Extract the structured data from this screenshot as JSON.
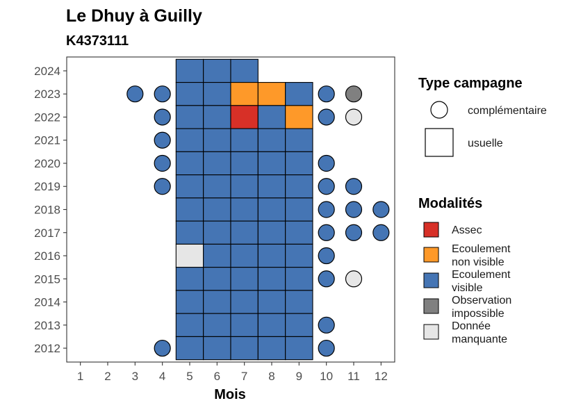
{
  "chart_data": {
    "type": "heatmap",
    "title": "Le Dhuy à Guilly",
    "subtitle": "K4373111",
    "xlabel": "Mois",
    "ylabel": "",
    "x_ticks": [
      1,
      2,
      3,
      4,
      5,
      6,
      7,
      8,
      9,
      10,
      11,
      12
    ],
    "y_ticks": [
      2012,
      2013,
      2014,
      2015,
      2016,
      2017,
      2018,
      2019,
      2020,
      2021,
      2022,
      2023,
      2024
    ],
    "xlim": [
      0.5,
      12.5
    ],
    "ylim": [
      2011.4,
      2024.6
    ],
    "grid": false,
    "legend_placement": "right",
    "colors": {
      "Assec": "#d73027",
      "Ecoulement non visible": "#fe9929",
      "Ecoulement visible": "#4575b4",
      "Observation impossible": "#808080",
      "Donnée manquante": "#e6e6e6"
    },
    "legend_shape": {
      "title": "Type campagne",
      "entries": [
        {
          "label": "complémentaire",
          "shape": "circle"
        },
        {
          "label": "usuelle",
          "shape": "square"
        }
      ]
    },
    "legend_fill": {
      "title": "Modalités",
      "entries": [
        {
          "key": "Assec",
          "lines": [
            "Assec"
          ]
        },
        {
          "key": "Ecoulement non visible",
          "lines": [
            "Ecoulement",
            "non visible"
          ]
        },
        {
          "key": "Ecoulement visible",
          "lines": [
            "Ecoulement",
            "visible"
          ]
        },
        {
          "key": "Observation impossible",
          "lines": [
            "Observation",
            "impossible"
          ]
        },
        {
          "key": "Donnée manquante",
          "lines": [
            "Donnée",
            "manquante"
          ]
        }
      ]
    },
    "usuelle": [
      {
        "year": 2024,
        "months": [
          "Ecoulement visible",
          "Ecoulement visible",
          "Ecoulement visible",
          null,
          null
        ]
      },
      {
        "year": 2023,
        "months": [
          "Ecoulement visible",
          "Ecoulement visible",
          "Ecoulement non visible",
          "Ecoulement non visible",
          "Ecoulement visible"
        ]
      },
      {
        "year": 2022,
        "months": [
          "Ecoulement visible",
          "Ecoulement visible",
          "Assec",
          "Ecoulement visible",
          "Ecoulement non visible"
        ]
      },
      {
        "year": 2021,
        "months": [
          "Ecoulement visible",
          "Ecoulement visible",
          "Ecoulement visible",
          "Ecoulement visible",
          "Ecoulement visible"
        ]
      },
      {
        "year": 2020,
        "months": [
          "Ecoulement visible",
          "Ecoulement visible",
          "Ecoulement visible",
          "Ecoulement visible",
          "Ecoulement visible"
        ]
      },
      {
        "year": 2019,
        "months": [
          "Ecoulement visible",
          "Ecoulement visible",
          "Ecoulement visible",
          "Ecoulement visible",
          "Ecoulement visible"
        ]
      },
      {
        "year": 2018,
        "months": [
          "Ecoulement visible",
          "Ecoulement visible",
          "Ecoulement visible",
          "Ecoulement visible",
          "Ecoulement visible"
        ]
      },
      {
        "year": 2017,
        "months": [
          "Ecoulement visible",
          "Ecoulement visible",
          "Ecoulement visible",
          "Ecoulement visible",
          "Ecoulement visible"
        ]
      },
      {
        "year": 2016,
        "months": [
          "Donnée manquante",
          "Ecoulement visible",
          "Ecoulement visible",
          "Ecoulement visible",
          "Ecoulement visible"
        ]
      },
      {
        "year": 2015,
        "months": [
          "Ecoulement visible",
          "Ecoulement visible",
          "Ecoulement visible",
          "Ecoulement visible",
          "Ecoulement visible"
        ]
      },
      {
        "year": 2014,
        "months": [
          "Ecoulement visible",
          "Ecoulement visible",
          "Ecoulement visible",
          "Ecoulement visible",
          "Ecoulement visible"
        ]
      },
      {
        "year": 2013,
        "months": [
          "Ecoulement visible",
          "Ecoulement visible",
          "Ecoulement visible",
          "Ecoulement visible",
          "Ecoulement visible"
        ]
      },
      {
        "year": 2012,
        "months": [
          "Ecoulement visible",
          "Ecoulement visible",
          "Ecoulement visible",
          "Ecoulement visible",
          "Ecoulement visible"
        ]
      }
    ],
    "usuelle_start_month": 5,
    "complementaire": [
      {
        "year": 2023,
        "month": 3,
        "value": "Ecoulement visible"
      },
      {
        "year": 2023,
        "month": 4,
        "value": "Ecoulement visible"
      },
      {
        "year": 2023,
        "month": 10,
        "value": "Ecoulement visible"
      },
      {
        "year": 2023,
        "month": 11,
        "value": "Observation impossible"
      },
      {
        "year": 2022,
        "month": 4,
        "value": "Ecoulement visible"
      },
      {
        "year": 2022,
        "month": 10,
        "value": "Ecoulement visible"
      },
      {
        "year": 2022,
        "month": 11,
        "value": "Donnée manquante"
      },
      {
        "year": 2021,
        "month": 4,
        "value": "Ecoulement visible"
      },
      {
        "year": 2020,
        "month": 4,
        "value": "Ecoulement visible"
      },
      {
        "year": 2020,
        "month": 10,
        "value": "Ecoulement visible"
      },
      {
        "year": 2019,
        "month": 4,
        "value": "Ecoulement visible"
      },
      {
        "year": 2019,
        "month": 10,
        "value": "Ecoulement visible"
      },
      {
        "year": 2019,
        "month": 11,
        "value": "Ecoulement visible"
      },
      {
        "year": 2018,
        "month": 10,
        "value": "Ecoulement visible"
      },
      {
        "year": 2018,
        "month": 11,
        "value": "Ecoulement visible"
      },
      {
        "year": 2018,
        "month": 12,
        "value": "Ecoulement visible"
      },
      {
        "year": 2017,
        "month": 10,
        "value": "Ecoulement visible"
      },
      {
        "year": 2017,
        "month": 11,
        "value": "Ecoulement visible"
      },
      {
        "year": 2017,
        "month": 12,
        "value": "Ecoulement visible"
      },
      {
        "year": 2016,
        "month": 10,
        "value": "Ecoulement visible"
      },
      {
        "year": 2015,
        "month": 10,
        "value": "Ecoulement visible"
      },
      {
        "year": 2015,
        "month": 11,
        "value": "Donnée manquante"
      },
      {
        "year": 2013,
        "month": 10,
        "value": "Ecoulement visible"
      },
      {
        "year": 2012,
        "month": 4,
        "value": "Ecoulement visible"
      },
      {
        "year": 2012,
        "month": 10,
        "value": "Ecoulement visible"
      }
    ]
  }
}
